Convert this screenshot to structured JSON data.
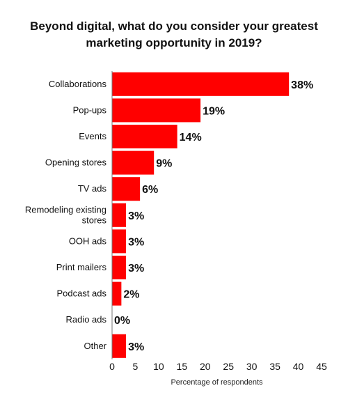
{
  "chart_data": {
    "type": "bar",
    "orientation": "horizontal",
    "title_lines": [
      "Beyond digital, what do you consider your greatest",
      "marketing opportunity in 2019?"
    ],
    "categories": [
      "Collaborations",
      "Pop-ups",
      "Events",
      "Opening stores",
      "TV ads",
      "Remodeling existing stores",
      "OOH ads",
      "Print mailers",
      "Podcast ads",
      "Radio ads",
      "Other"
    ],
    "category_label_lines": [
      [
        "Collaborations"
      ],
      [
        "Pop-ups"
      ],
      [
        "Events"
      ],
      [
        "Opening stores"
      ],
      [
        "TV ads"
      ],
      [
        "Remodeling existing",
        "stores"
      ],
      [
        "OOH ads"
      ],
      [
        "Print mailers"
      ],
      [
        "Podcast ads"
      ],
      [
        "Radio ads"
      ],
      [
        "Other"
      ]
    ],
    "values": [
      38,
      19,
      14,
      9,
      6,
      3,
      3,
      3,
      2,
      0,
      3
    ],
    "value_labels": [
      "38%",
      "19%",
      "14%",
      "9%",
      "6%",
      "3%",
      "3%",
      "3%",
      "2%",
      "0%",
      "3%"
    ],
    "xlabel": "Percentage of respondents",
    "xlim": [
      0,
      45
    ],
    "xticks": [
      0,
      5,
      10,
      15,
      20,
      25,
      30,
      35,
      40,
      45
    ],
    "grid": false,
    "legend": "none",
    "bar_color": "#ff0000"
  }
}
